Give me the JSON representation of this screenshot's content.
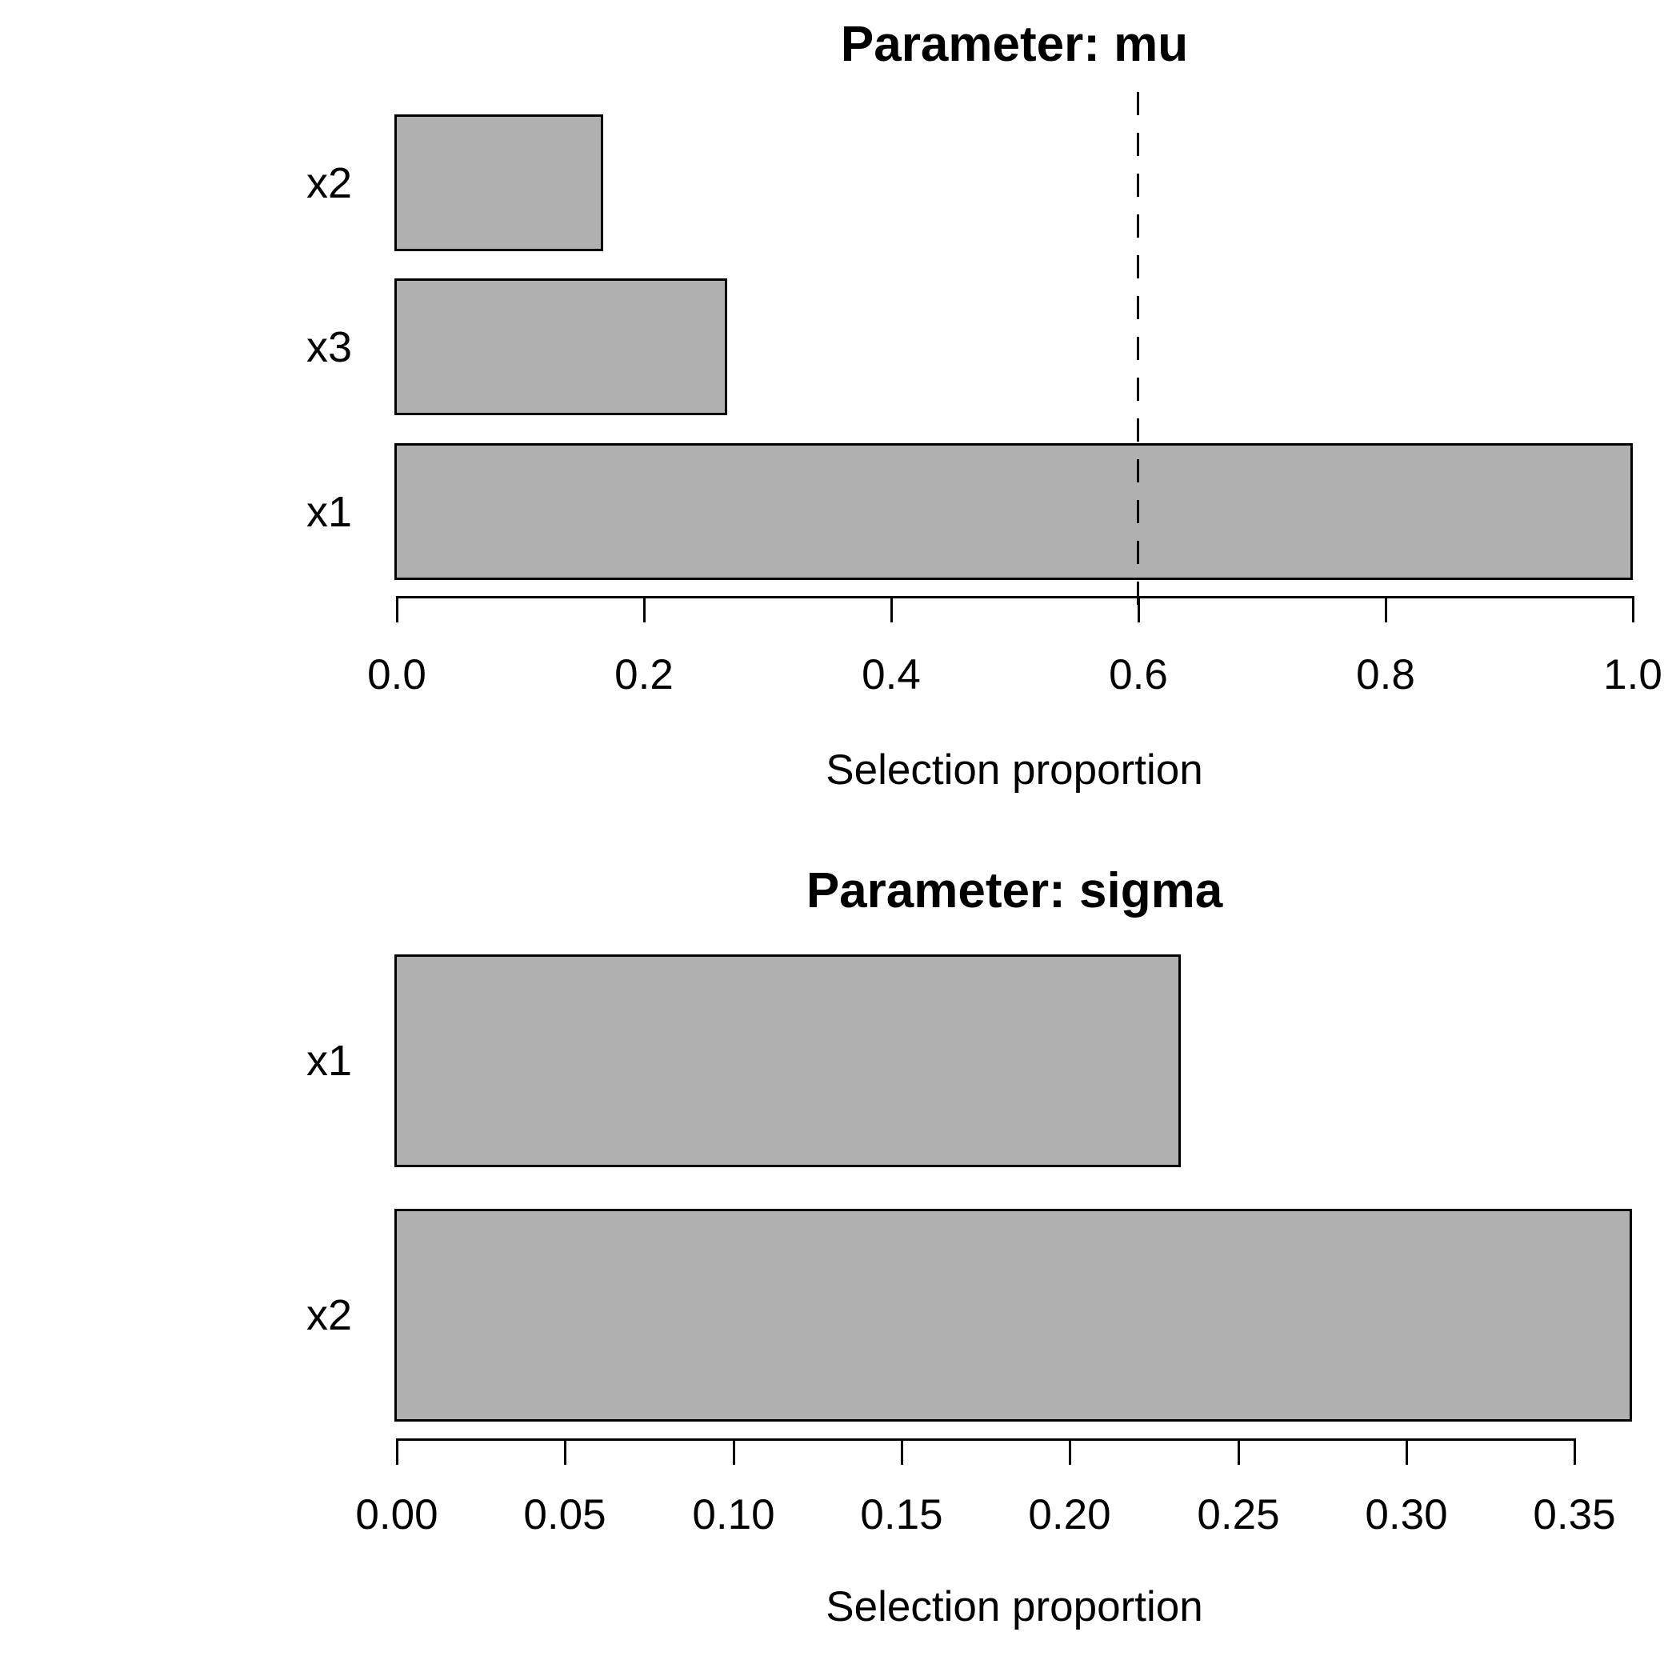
{
  "figure": {
    "background": "#ffffff",
    "text_color": "#000000",
    "bar_fill": "#b0b0b0",
    "bar_border": "#000000"
  },
  "chart_data": [
    {
      "type": "bar",
      "orientation": "horizontal",
      "title": "Parameter: mu",
      "xlabel": "Selection proportion",
      "categories": [
        "x2",
        "x3",
        "x1"
      ],
      "values": [
        0.167,
        0.267,
        1.0
      ],
      "xlim": [
        0.0,
        1.0
      ],
      "xticks": [
        0.0,
        0.2,
        0.4,
        0.6,
        0.8,
        1.0
      ],
      "xtick_labels": [
        "0.0",
        "0.2",
        "0.4",
        "0.6",
        "0.8",
        "1.0"
      ],
      "threshold_line": {
        "value": 0.6,
        "style": "dashed",
        "color": "#000000"
      },
      "bar_color": "#b0b0b0",
      "grid": false,
      "legend": "none"
    },
    {
      "type": "bar",
      "orientation": "horizontal",
      "title": "Parameter: sigma",
      "xlabel": "Selection proportion",
      "categories": [
        "x1",
        "x2"
      ],
      "values": [
        0.233,
        0.367
      ],
      "xlim": [
        0.0,
        0.37
      ],
      "xticks": [
        0.0,
        0.05,
        0.1,
        0.15,
        0.2,
        0.25,
        0.3,
        0.35
      ],
      "xtick_labels": [
        "0.00",
        "0.05",
        "0.10",
        "0.15",
        "0.20",
        "0.25",
        "0.30",
        "0.35"
      ],
      "threshold_line": null,
      "bar_color": "#b0b0b0",
      "grid": false,
      "legend": "none"
    }
  ]
}
